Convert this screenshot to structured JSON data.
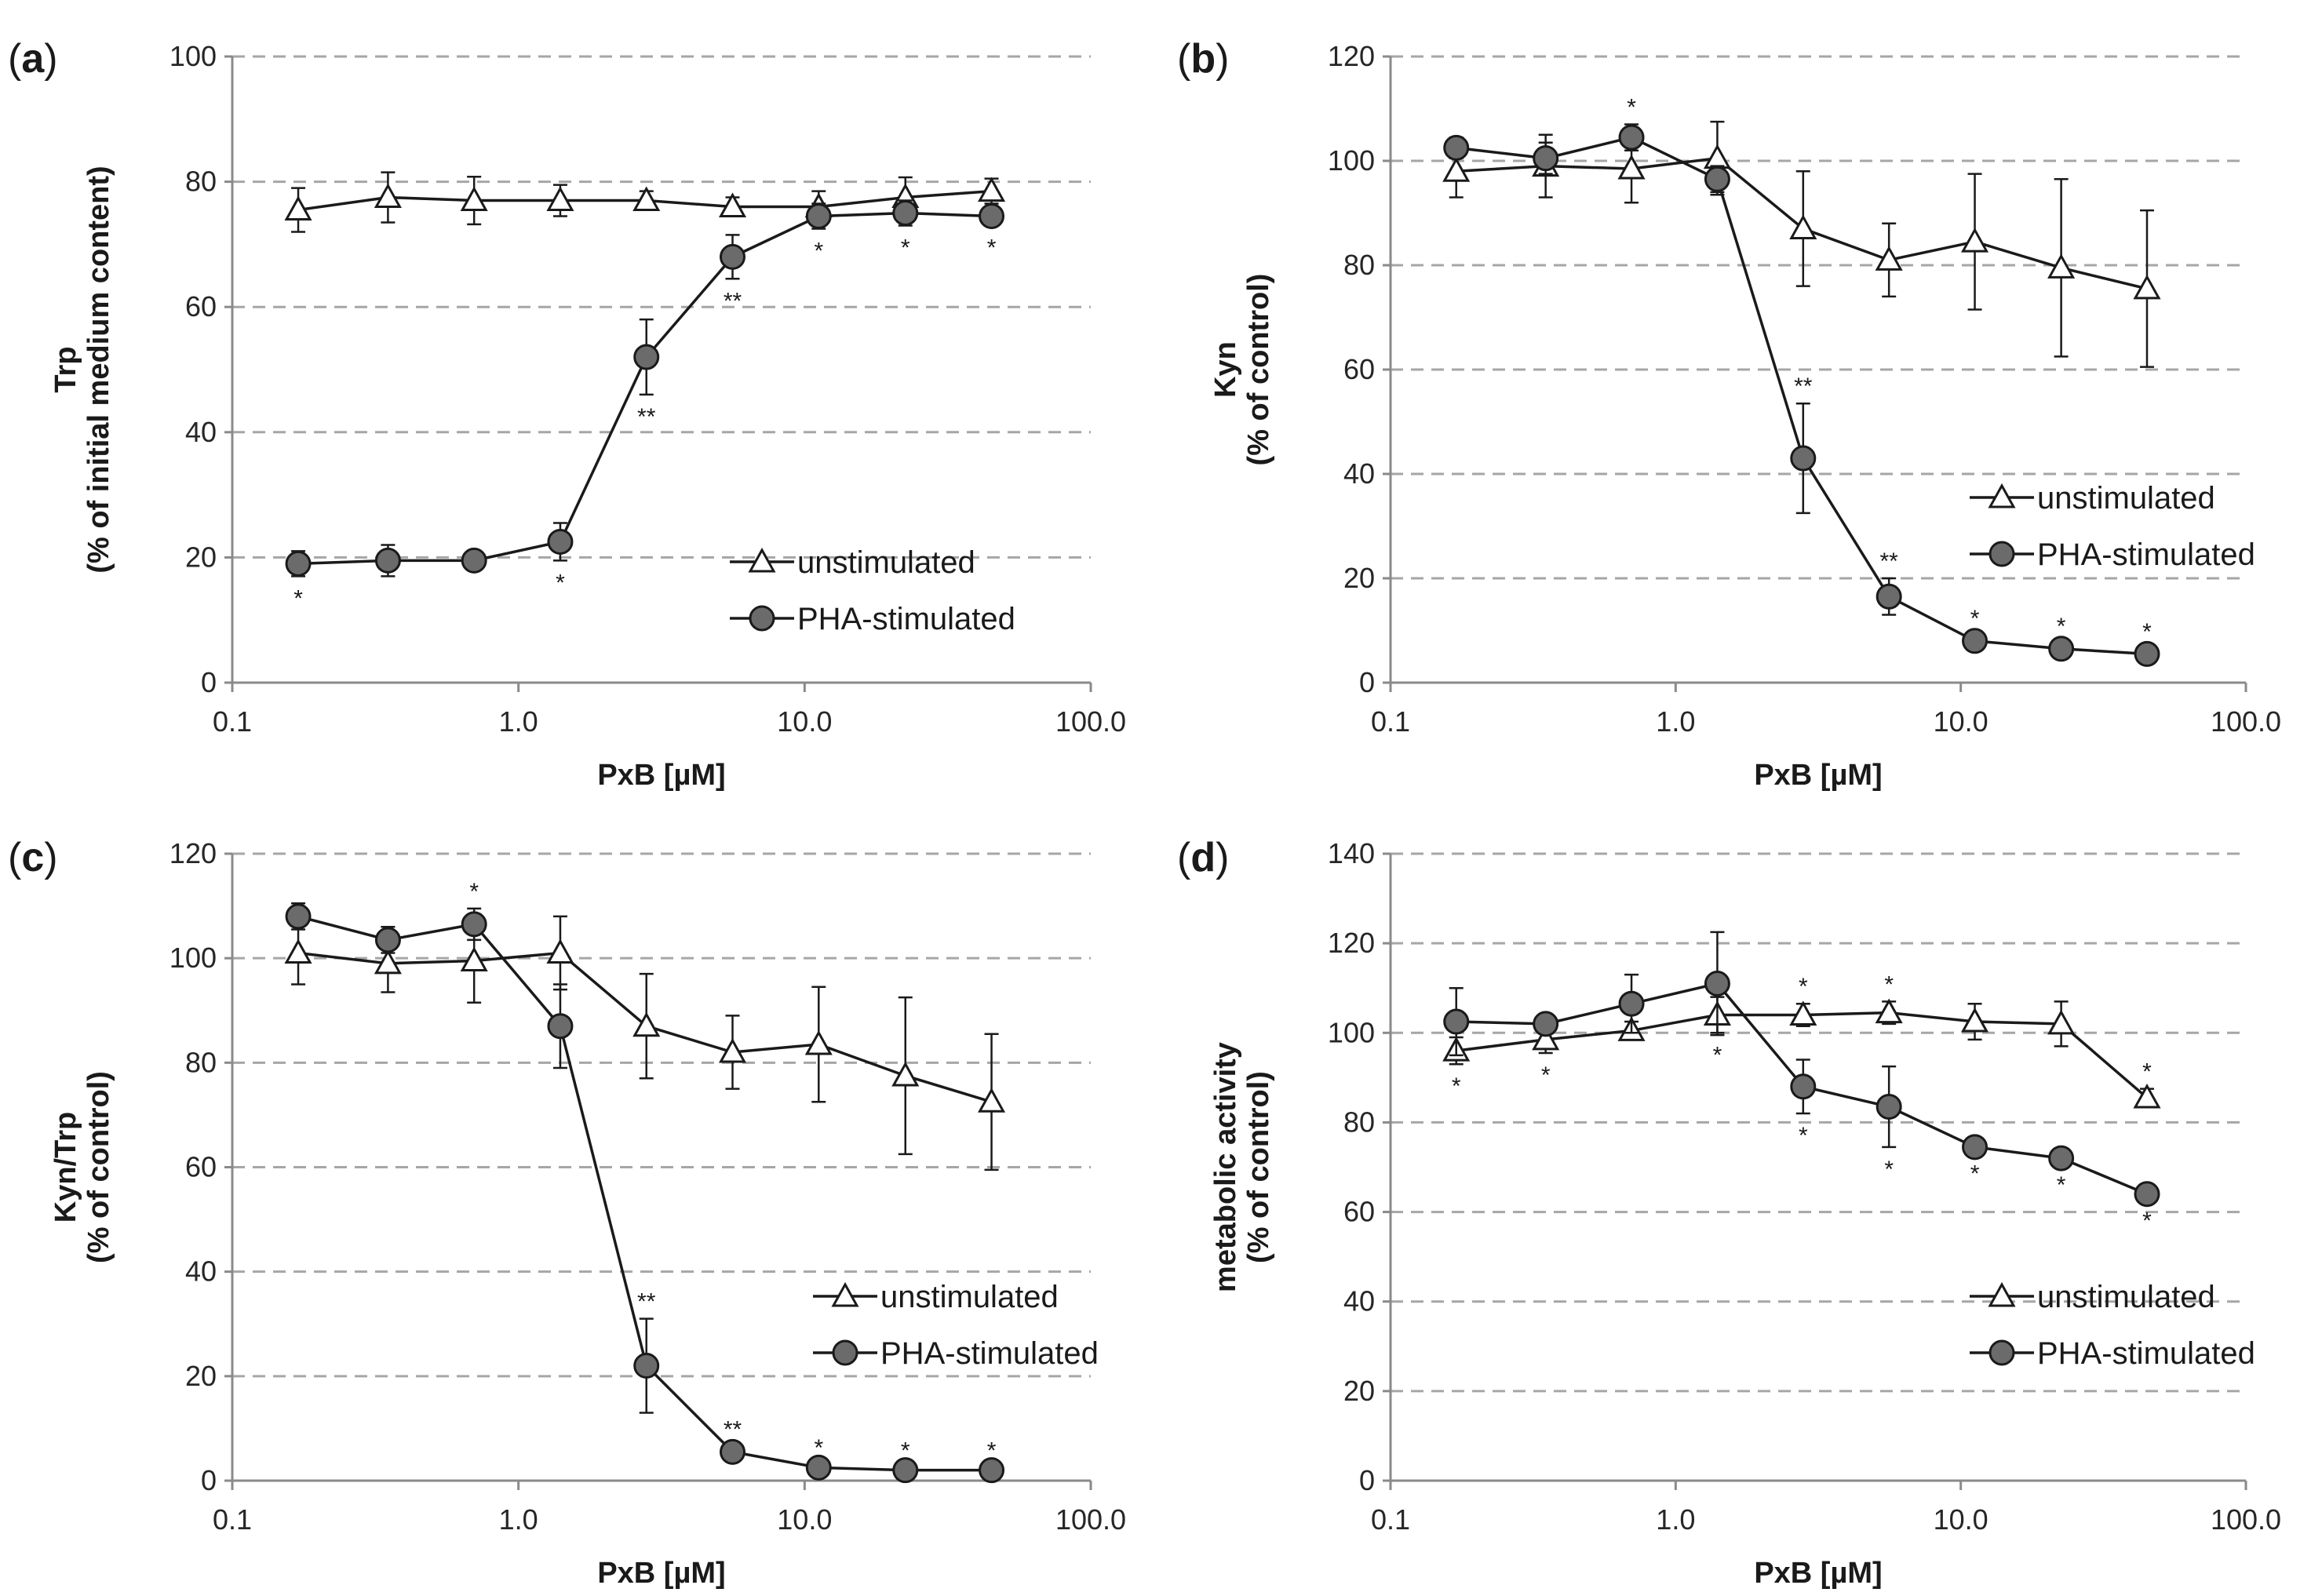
{
  "chart_data": [
    {
      "panel": "(a)",
      "type": "line",
      "title": "",
      "xlabel": "PxB [µM]",
      "ylabel": [
        "Trp",
        "(% of initial medium content)"
      ],
      "xscale": "log",
      "xlim": [
        0.1,
        100.0
      ],
      "ylim": [
        0,
        100
      ],
      "ytick_step": 20,
      "xticks": [
        "0.1",
        "1.0",
        "10.0",
        "100.0"
      ],
      "yticks": [
        "0",
        "20",
        "40",
        "60",
        "80",
        "100"
      ],
      "legend_position": "lower-right",
      "grid": "horizontal-dashed",
      "x": [
        0.17,
        0.35,
        0.7,
        1.4,
        2.8,
        5.6,
        11.2,
        22.5,
        45.0
      ],
      "series": [
        {
          "name": "unstimulated",
          "marker": "triangle",
          "values": [
            75.5,
            77.5,
            77.0,
            77.0,
            77.0,
            76.0,
            76.0,
            77.5,
            78.5
          ],
          "errors": [
            3.5,
            4.0,
            3.8,
            2.5,
            1.5,
            1.5,
            2.5,
            3.2,
            2.0
          ],
          "significance": [
            "",
            "",
            "",
            "",
            "",
            "",
            "",
            "",
            ""
          ]
        },
        {
          "name": "PHA-stimulated",
          "marker": "circle",
          "values": [
            19.0,
            19.5,
            19.5,
            22.5,
            52.0,
            68.0,
            74.5,
            75.0,
            74.5
          ],
          "errors": [
            2.0,
            2.5,
            1.5,
            3.0,
            6.0,
            3.5,
            2.0,
            2.0,
            1.5
          ],
          "significance": [
            "*",
            "",
            "",
            "*",
            "**",
            "**",
            "*",
            "*",
            "*"
          ],
          "significance_side": [
            "below",
            "below",
            "below",
            "below",
            "below",
            "below",
            "below",
            "below",
            "below"
          ]
        }
      ]
    },
    {
      "panel": "(b)",
      "type": "line",
      "title": "",
      "xlabel": "PxB [µM]",
      "ylabel": [
        "Kyn",
        "(% of control)"
      ],
      "xscale": "log",
      "xlim": [
        0.1,
        100.0
      ],
      "ylim": [
        0,
        120
      ],
      "ytick_step": 20,
      "xticks": [
        "0.1",
        "1.0",
        "10.0",
        "100.0"
      ],
      "yticks": [
        "0",
        "20",
        "40",
        "60",
        "80",
        "100",
        "120"
      ],
      "legend_position": "center-right",
      "grid": "horizontal-dashed",
      "x": [
        0.17,
        0.35,
        0.7,
        1.4,
        2.8,
        5.6,
        11.2,
        22.5,
        45.0
      ],
      "series": [
        {
          "name": "unstimulated",
          "marker": "triangle",
          "values": [
            98.0,
            99.0,
            98.5,
            100.5,
            87.0,
            81.0,
            84.5,
            79.5,
            75.5
          ],
          "errors": [
            5.0,
            6.0,
            6.5,
            7.0,
            11.0,
            7.0,
            13.0,
            17.0,
            15.0
          ],
          "significance": [
            "",
            "",
            "",
            "",
            "",
            "",
            "",
            "",
            ""
          ]
        },
        {
          "name": "PHA-stimulated",
          "marker": "circle",
          "values": [
            102.5,
            100.5,
            104.5,
            96.5,
            43.0,
            16.5,
            8.0,
            6.5,
            5.5
          ],
          "errors": [
            2.0,
            3.0,
            2.5,
            2.5,
            10.5,
            3.5,
            1.0,
            1.0,
            1.0
          ],
          "significance": [
            "",
            "",
            "*",
            "",
            "**",
            "**",
            "*",
            "*",
            "*"
          ],
          "significance_side": [
            "above",
            "above",
            "above",
            "above",
            "above",
            "above",
            "above",
            "above",
            "above"
          ]
        }
      ]
    },
    {
      "panel": "(c)",
      "type": "line",
      "title": "",
      "xlabel": "PxB [µM]",
      "ylabel": [
        "Kyn/Trp",
        "(% of control)"
      ],
      "xscale": "log",
      "xlim": [
        0.1,
        100.0
      ],
      "ylim": [
        0,
        120
      ],
      "ytick_step": 20,
      "xticks": [
        "0.1",
        "1.0",
        "10.0",
        "100.0"
      ],
      "yticks": [
        "0",
        "20",
        "40",
        "60",
        "80",
        "100",
        "120"
      ],
      "legend_position": "center-right",
      "grid": "horizontal-dashed",
      "x": [
        0.17,
        0.35,
        0.7,
        1.4,
        2.8,
        5.6,
        11.2,
        22.5,
        45.0
      ],
      "series": [
        {
          "name": "unstimulated",
          "marker": "triangle",
          "values": [
            101.0,
            99.0,
            99.5,
            101.0,
            87.0,
            82.0,
            83.5,
            77.5,
            72.5
          ],
          "errors": [
            6.0,
            5.5,
            8.0,
            7.0,
            10.0,
            7.0,
            11.0,
            15.0,
            13.0
          ],
          "significance": [
            "",
            "",
            "",
            "",
            "",
            "",
            "",
            "",
            ""
          ]
        },
        {
          "name": "PHA-stimulated",
          "marker": "circle",
          "values": [
            108.0,
            103.5,
            106.5,
            87.0,
            22.0,
            5.5,
            2.5,
            2.0,
            2.0
          ],
          "errors": [
            2.5,
            2.5,
            3.0,
            8.0,
            9.0,
            1.0,
            0.5,
            0.5,
            0.5
          ],
          "significance": [
            "",
            "",
            "*",
            "",
            "**",
            "**",
            "*",
            "*",
            "*"
          ],
          "significance_side": [
            "above",
            "above",
            "above",
            "above",
            "above",
            "above",
            "above",
            "above",
            "above"
          ]
        }
      ]
    },
    {
      "panel": "(d)",
      "type": "line",
      "title": "",
      "xlabel": "PxB [µM]",
      "ylabel": [
        "metabolic activity",
        "(% of control)"
      ],
      "xscale": "log",
      "xlim": [
        0.1,
        100.0
      ],
      "ylim": [
        0,
        140
      ],
      "ytick_step": 20,
      "xticks": [
        "0.1",
        "1.0",
        "10.0",
        "100.0"
      ],
      "yticks": [
        "0",
        "20",
        "40",
        "60",
        "80",
        "100",
        "120",
        "140"
      ],
      "legend_position": "lower-right",
      "grid": "horizontal-dashed",
      "x": [
        0.17,
        0.35,
        0.7,
        1.4,
        2.8,
        5.6,
        11.2,
        22.5,
        45.0
      ],
      "series": [
        {
          "name": "unstimulated",
          "marker": "triangle",
          "values": [
            96.0,
            98.5,
            100.5,
            104.0,
            104.0,
            104.5,
            102.5,
            102.0,
            85.5
          ],
          "errors": [
            3.0,
            3.0,
            2.0,
            4.0,
            2.5,
            2.5,
            4.0,
            5.0,
            2.0
          ],
          "significance": [
            "*",
            "*",
            "",
            "*",
            "*",
            "*",
            "",
            "",
            "*"
          ],
          "significance_side": [
            "below",
            "below",
            "below",
            "below",
            "above",
            "above",
            "above",
            "above",
            "above"
          ]
        },
        {
          "name": "PHA-stimulated",
          "marker": "circle",
          "values": [
            102.5,
            102.0,
            106.5,
            111.0,
            88.0,
            83.5,
            74.5,
            72.0,
            64.0
          ],
          "errors": [
            7.5,
            2.0,
            6.5,
            11.5,
            6.0,
            9.0,
            1.0,
            1.0,
            1.0
          ],
          "significance": [
            "",
            "",
            "",
            "",
            "*",
            "*",
            "*",
            "*",
            "*"
          ],
          "significance_side": [
            "above",
            "above",
            "above",
            "above",
            "below",
            "below",
            "below",
            "below",
            "below"
          ]
        }
      ]
    }
  ]
}
